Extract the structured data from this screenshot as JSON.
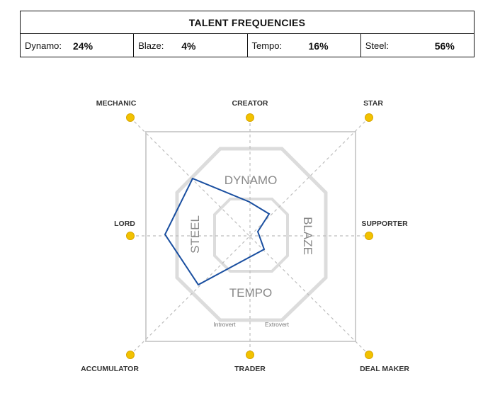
{
  "table": {
    "title": "TALENT FREQUENCIES",
    "cells": [
      {
        "label": "Dynamo:",
        "value": "24%"
      },
      {
        "label": "Blaze:",
        "value": "4%"
      },
      {
        "label": "Tempo:",
        "value": "16%"
      },
      {
        "label": "Steel:",
        "value": "56%"
      }
    ]
  },
  "wheel": {
    "profiles": {
      "dynamo": "DYNAMO",
      "blaze": "BLAZE",
      "tempo": "TEMPO",
      "steel": "STEEL"
    },
    "sub_labels": {
      "introvert": "Introvert",
      "extrovert": "Extrovert"
    },
    "nodes": {
      "mechanic": "MECHANIC",
      "creator": "CREATOR",
      "star": "STAR",
      "supporter": "SUPPORTER",
      "deal_maker": "DEAL MAKER",
      "trader": "TRADER",
      "accumulator": "ACCUMULATOR",
      "lord": "LORD"
    },
    "colors": {
      "node": "#f2c200",
      "node_outline": "#d9a600",
      "profile_line": "#1a4fa0",
      "frame": "#cfcfcf",
      "guide": "#bdbdbd"
    }
  }
}
